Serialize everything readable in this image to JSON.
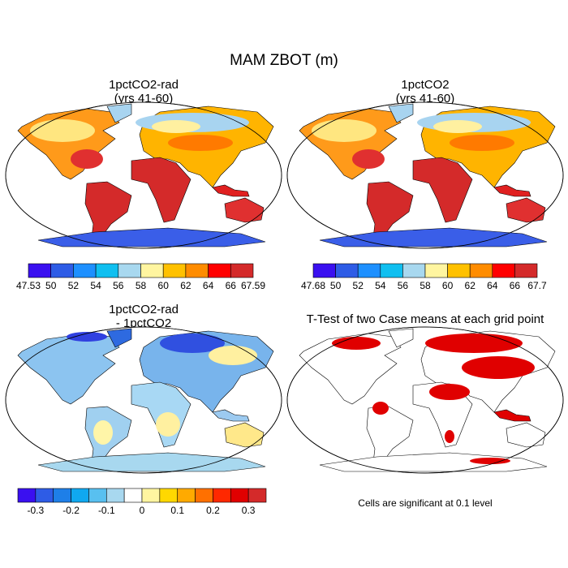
{
  "title": "MAM ZBOT (m)",
  "panels": [
    {
      "title": "1pctCO2-rad",
      "subtitle": "(yrs 41-60)",
      "colorbar": {
        "labels": [
          "47.53",
          "50",
          "52",
          "54",
          "56",
          "58",
          "60",
          "62",
          "64",
          "66",
          "67.59"
        ]
      }
    },
    {
      "title": "1pctCO2",
      "subtitle": "(yrs 41-60)",
      "colorbar": {
        "labels": [
          "47.68",
          "50",
          "52",
          "54",
          "56",
          "58",
          "60",
          "62",
          "64",
          "66",
          "67.7"
        ]
      }
    },
    {
      "title": "1pctCO2-rad",
      "subtitle": "- 1pctCO2",
      "colorbar": {
        "labels": [
          "-0.3",
          "-0.2",
          "-0.1",
          "0",
          "0.1",
          "0.2",
          "0.3"
        ]
      }
    },
    {
      "title": "T-Test of two Case means at each grid point",
      "note": "Cells are significant at 0.1 level"
    }
  ]
}
